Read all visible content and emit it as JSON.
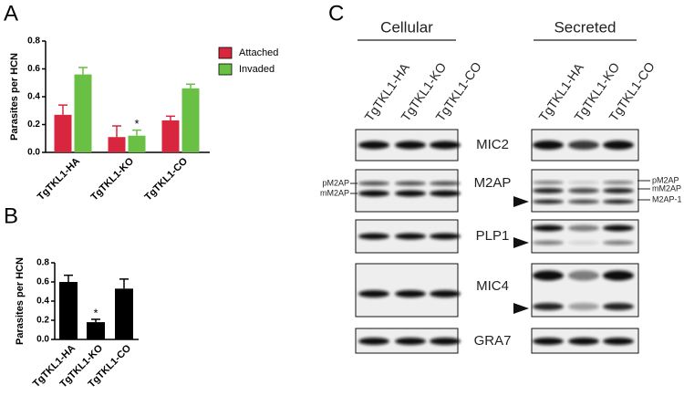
{
  "panels": [
    "A",
    "B",
    "C"
  ],
  "chart_data": [
    {
      "type": "bar",
      "y_label": "Parasites per HCN",
      "categories": [
        "TgTKL1-HA",
        "TgTKL1-KO",
        "TgTKL1-CO"
      ],
      "series": [
        {
          "name": "Attached",
          "color": "#d7263d",
          "values": [
            0.27,
            0.11,
            0.23
          ],
          "errors": [
            0.07,
            0.08,
            0.03
          ]
        },
        {
          "name": "Invaded",
          "color": "#6abf45",
          "values": [
            0.56,
            0.12,
            0.46
          ],
          "errors": [
            0.05,
            0.04,
            0.03
          ]
        }
      ],
      "annotation": "*",
      "ylim": [
        0,
        0.8
      ],
      "yticks": [
        {
          "value": 0,
          "label": "0.0"
        },
        {
          "value": 0.2,
          "label": "0.2"
        },
        {
          "value": 0.4,
          "label": "0.4"
        },
        {
          "value": 0.6,
          "label": "0.6"
        },
        {
          "value": 0.8,
          "label": "0.8"
        }
      ]
    },
    {
      "type": "bar",
      "y_label": "Parasites per HCN",
      "categories": [
        "TgTKL1-HA",
        "TgTKL1-KO",
        "TgTKL1-CO"
      ],
      "values": [
        0.6,
        0.18,
        0.53
      ],
      "errors": [
        0.07,
        0.03,
        0.1
      ],
      "color": "#000000",
      "annotation": "*",
      "ylim": [
        0,
        0.8
      ],
      "yticks": [
        {
          "value": 0,
          "label": "0.0"
        },
        {
          "value": 0.2,
          "label": "0.2"
        },
        {
          "value": 0.4,
          "label": "0.4"
        },
        {
          "value": 0.6,
          "label": "0.6"
        },
        {
          "value": 0.8,
          "label": "0.8"
        }
      ]
    }
  ],
  "blot": {
    "groups": [
      "Cellular",
      "Secreted"
    ],
    "lanes": [
      "TgTKL1-HA",
      "TgTKL1-KO",
      "TgTKL1-CO"
    ],
    "proteins": [
      "MIC2",
      "M2AP",
      "PLP1",
      "MIC4",
      "GRA7"
    ],
    "left_labels": [
      "pM2AP",
      "mM2AP"
    ],
    "right_labels": [
      "pM2AP",
      "mM2AP",
      "M2AP-1"
    ]
  }
}
